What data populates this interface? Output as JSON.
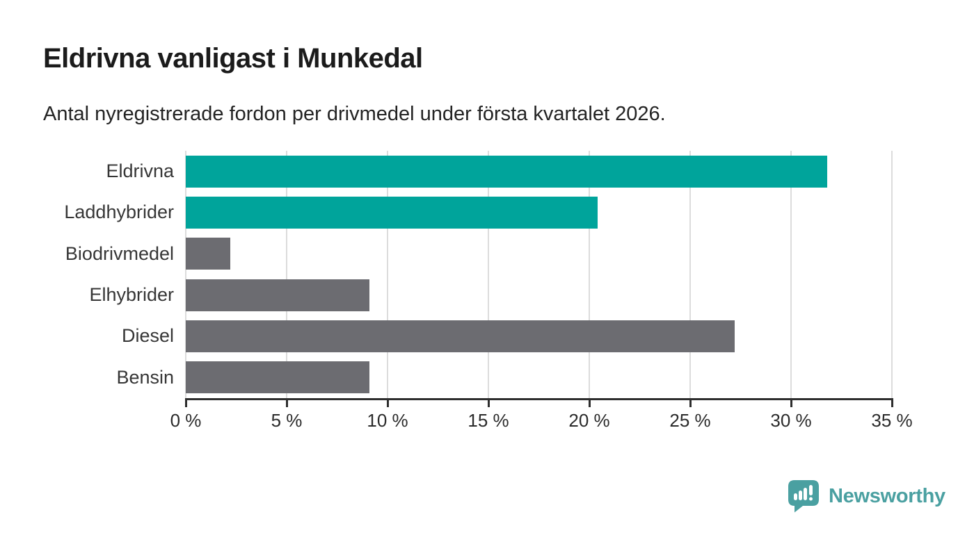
{
  "header": {
    "title": "Eldrivna vanligast i Munkedal",
    "subtitle": "Antal nyregistrerade fordon per drivmedel under första kvartalet 2026."
  },
  "chart_data": {
    "type": "bar",
    "orientation": "horizontal",
    "title": "Eldrivna vanligast i Munkedal",
    "subtitle": "Antal nyregistrerade fordon per drivmedel under första kvartalet 2026.",
    "categories": [
      "Eldrivna",
      "Laddhybrider",
      "Biodrivmedel",
      "Elhybrider",
      "Diesel",
      "Bensin"
    ],
    "values": [
      31.8,
      20.4,
      2.2,
      9.1,
      27.2,
      9.1
    ],
    "unit": "%",
    "bar_colors": [
      "#00A49B",
      "#00A49B",
      "#6C6C71",
      "#6C6C71",
      "#6C6C71",
      "#6C6C71"
    ],
    "highlight_color": "#00A49B",
    "default_color": "#6C6C71",
    "xlabel": "",
    "ylabel": "",
    "xlim": [
      0,
      35
    ],
    "xticks": [
      0,
      5,
      10,
      15,
      20,
      25,
      30,
      35
    ],
    "xtick_suffix": " %",
    "grid": "vertical-only",
    "legend": "none",
    "value_labels": "none"
  },
  "footer": {
    "brand": "Newsworthy",
    "brand_color": "#4AA0A1",
    "logo_icon": "speech-bubble-bar-chart-icon"
  },
  "colors": {
    "background": "#ffffff",
    "teal_bar": "#00A49B",
    "gray_bar": "#6C6C71",
    "gridline": "#dcdcdc",
    "axis": "#2e2e2e",
    "title_text": "#1b1b1b",
    "body_text": "#232323"
  }
}
